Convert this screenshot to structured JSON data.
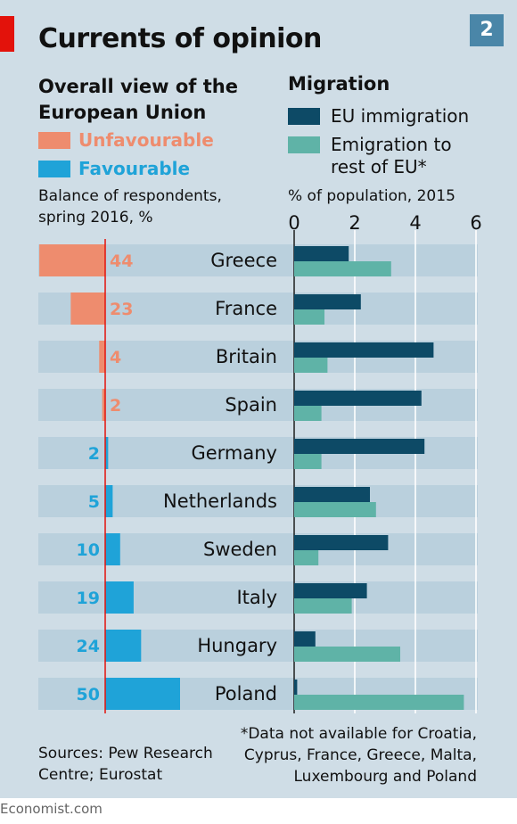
{
  "header": {
    "title": "Currents of opinion",
    "badge": "2"
  },
  "left_panel": {
    "heading_line1": "Overall view of the",
    "heading_line2": "European Union",
    "legend_unfavourable": "Unfavourable",
    "legend_favourable": "Favourable",
    "note_line1": "Balance of respondents,",
    "note_line2": "spring 2016, %"
  },
  "right_panel": {
    "heading": "Migration",
    "legend_immigration": "EU immigration",
    "legend_emigration_line1": "Emigration to",
    "legend_emigration_line2": "rest of EU*",
    "note": "% of population, 2015"
  },
  "colors": {
    "background": "#cfdde6",
    "unfavourable": "#ee8c6e",
    "favourable": "#1fa3d8",
    "immigration": "#0d4a66",
    "emigration": "#5fb3a7",
    "row_band": "#bad0dd",
    "zero_line": "#e3120b"
  },
  "chart_data": [
    {
      "type": "bar",
      "title": "Overall view of the European Union",
      "subtitle": "Balance of respondents, spring 2016, %",
      "categories": [
        "Greece",
        "France",
        "Britain",
        "Spain",
        "Germany",
        "Netherlands",
        "Sweden",
        "Italy",
        "Hungary",
        "Poland"
      ],
      "series": [
        {
          "name": "Unfavourable",
          "values": [
            44,
            23,
            4,
            2,
            null,
            null,
            null,
            null,
            null,
            null
          ]
        },
        {
          "name": "Favourable",
          "values": [
            null,
            null,
            null,
            null,
            2,
            5,
            10,
            19,
            24,
            50
          ]
        }
      ]
    },
    {
      "type": "bar",
      "title": "Migration",
      "subtitle": "% of population, 2015",
      "categories": [
        "Greece",
        "France",
        "Britain",
        "Spain",
        "Germany",
        "Netherlands",
        "Sweden",
        "Italy",
        "Hungary",
        "Poland"
      ],
      "series": [
        {
          "name": "EU immigration",
          "values": [
            1.8,
            2.2,
            4.6,
            4.2,
            4.3,
            2.5,
            3.1,
            2.4,
            0.7,
            0.1
          ]
        },
        {
          "name": "Emigration to rest of EU*",
          "values": [
            3.2,
            1.0,
            1.1,
            0.9,
            0.9,
            2.7,
            0.8,
            1.9,
            3.5,
            5.6
          ]
        }
      ],
      "xlim": [
        0,
        6
      ],
      "x_ticks": [
        0,
        2,
        4,
        6
      ],
      "grid": true
    }
  ],
  "sources": {
    "line1": "Sources: Pew Research",
    "line2": "Centre; Eurostat"
  },
  "footnote": {
    "line1": "*Data not available for Croatia,",
    "line2": "Cyprus, France, Greece, Malta,",
    "line3": "Luxembourg and Poland"
  },
  "footer": "Economist.com"
}
